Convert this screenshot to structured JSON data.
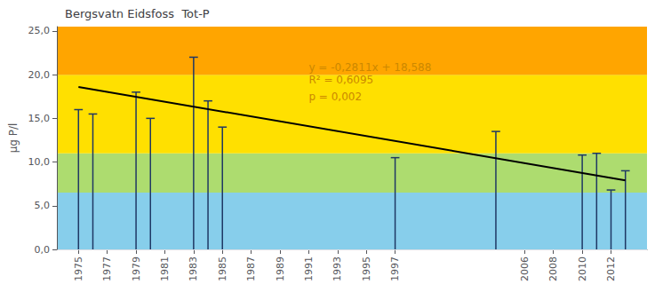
{
  "chart_data": {
    "type": "stem",
    "title": "Bergsvatn Eidsfoss  Tot-P",
    "ylabel": "µg P/l",
    "x": [
      1975,
      1976,
      1979,
      1980,
      1983,
      1984,
      1985,
      1997,
      2004,
      2010,
      2011,
      2012,
      2013
    ],
    "values": [
      16.0,
      15.5,
      18.0,
      15.0,
      22.0,
      17.0,
      14.0,
      10.5,
      13.5,
      10.8,
      11.0,
      6.8,
      9.0
    ],
    "color": "#1F3864",
    "trend": {
      "type": "line",
      "color": "#000000",
      "x": [
        1975,
        2013
      ],
      "values": [
        18.588,
        7.9062
      ]
    },
    "bands": [
      {
        "ymin": 0.0,
        "ymax": 6.5,
        "color": "#87CEEB"
      },
      {
        "ymin": 6.5,
        "ymax": 11.0,
        "color": "#ADDC6F"
      },
      {
        "ymin": 11.0,
        "ymax": 20.0,
        "color": "#FFE000"
      },
      {
        "ymin": 20.0,
        "ymax": 25.5,
        "color": "#FFA500"
      }
    ],
    "annotations": [
      {
        "text": "y = -0,2811x + 18,588",
        "x": 1991,
        "y": 20.8,
        "color": "#CC8800"
      },
      {
        "text": "R² = 0,6095",
        "x": 1991,
        "y": 19.4,
        "color": "#CC8800"
      },
      {
        "text": "p = 0,002",
        "x": 1991,
        "y": 17.5,
        "color": "#CC8800"
      }
    ],
    "xlim": [
      1973.5,
      2014.5
    ],
    "xticks": [
      1975,
      1977,
      1979,
      1981,
      1983,
      1985,
      1987,
      1989,
      1991,
      1993,
      1995,
      1997,
      2006,
      2008,
      2010,
      2012
    ],
    "ylim": [
      0,
      25.5
    ],
    "yticks": [
      {
        "value": 0,
        "label": "0,0"
      },
      {
        "value": 5,
        "label": "5,0"
      },
      {
        "value": 10,
        "label": "10,0"
      },
      {
        "value": 15,
        "label": "15,0"
      },
      {
        "value": 20,
        "label": "20,0"
      },
      {
        "value": 25,
        "label": "25,0"
      }
    ],
    "grid": true
  }
}
